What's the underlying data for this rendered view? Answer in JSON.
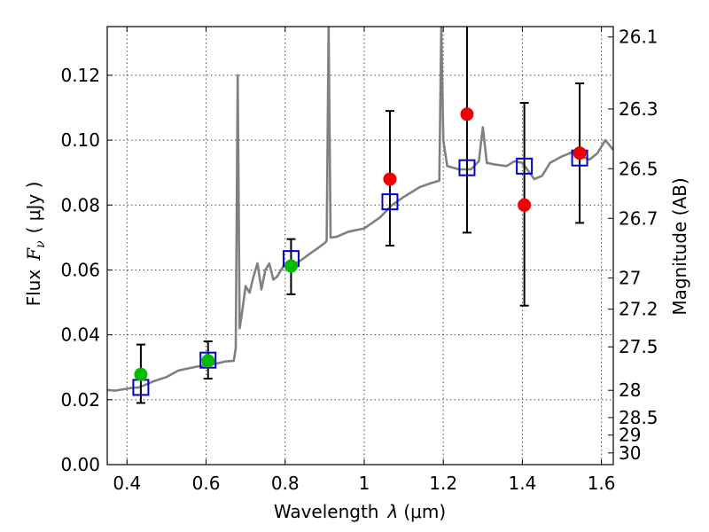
{
  "chart_data": {
    "type": "scatter",
    "xlabel": "Wavelength",
    "xlabel_symbol": "λ",
    "xlabel_unit": "(μm)",
    "ylabel": "Flux",
    "ylabel_symbol": "F",
    "ylabel_subscript": "ν",
    "ylabel_unit": "( μJy )",
    "y2label": "Magnitude (AB)",
    "xlim": [
      0.35,
      1.63
    ],
    "ylim": [
      0.0,
      0.135
    ],
    "grid": true,
    "x_ticks": [
      0.4,
      0.6,
      0.8,
      1.0,
      1.2,
      1.4,
      1.6
    ],
    "x_tick_labels": [
      "0.4",
      "0.6",
      "0.8",
      "1",
      "1.2",
      "1.4",
      "1.6"
    ],
    "y_ticks": [
      0.0,
      0.02,
      0.04,
      0.06,
      0.08,
      0.1,
      0.12
    ],
    "y_tick_labels": [
      "0.00",
      "0.02",
      "0.04",
      "0.06",
      "0.08",
      "0.10",
      "0.12"
    ],
    "y2_ticks": [
      {
        "label": "26.1",
        "flux": 0.1318
      },
      {
        "label": "26.3",
        "flux": 0.1096
      },
      {
        "label": "26.5",
        "flux": 0.0912
      },
      {
        "label": "26.7",
        "flux": 0.0759
      },
      {
        "label": "27",
        "flux": 0.0575
      },
      {
        "label": "27.2",
        "flux": 0.0479
      },
      {
        "label": "27.5",
        "flux": 0.0363
      },
      {
        "label": "28",
        "flux": 0.0229
      },
      {
        "label": "28.5",
        "flux": 0.0145
      },
      {
        "label": "29",
        "flux": 0.0091
      },
      {
        "label": "30",
        "flux": 0.0036
      }
    ],
    "series": [
      {
        "type": "line",
        "color": "#808080",
        "points": [
          [
            0.35,
            0.023
          ],
          [
            0.37,
            0.0228
          ],
          [
            0.39,
            0.0232
          ],
          [
            0.41,
            0.0236
          ],
          [
            0.43,
            0.0238
          ],
          [
            0.45,
            0.0248
          ],
          [
            0.47,
            0.0258
          ],
          [
            0.5,
            0.027
          ],
          [
            0.53,
            0.029
          ],
          [
            0.56,
            0.0298
          ],
          [
            0.59,
            0.0305
          ],
          [
            0.62,
            0.031
          ],
          [
            0.65,
            0.0318
          ],
          [
            0.67,
            0.032
          ],
          [
            0.675,
            0.036
          ],
          [
            0.68,
            0.12
          ],
          [
            0.685,
            0.042
          ],
          [
            0.69,
            0.046
          ],
          [
            0.7,
            0.055
          ],
          [
            0.71,
            0.053
          ],
          [
            0.72,
            0.058
          ],
          [
            0.73,
            0.062
          ],
          [
            0.74,
            0.054
          ],
          [
            0.75,
            0.06
          ],
          [
            0.76,
            0.062
          ],
          [
            0.77,
            0.057
          ],
          [
            0.78,
            0.058
          ],
          [
            0.8,
            0.062
          ],
          [
            0.82,
            0.0615
          ],
          [
            0.84,
            0.063
          ],
          [
            0.86,
            0.0648
          ],
          [
            0.88,
            0.0665
          ],
          [
            0.9,
            0.0683
          ],
          [
            0.905,
            0.069
          ],
          [
            0.91,
            0.135
          ],
          [
            0.915,
            0.07
          ],
          [
            0.93,
            0.0702
          ],
          [
            0.96,
            0.0718
          ],
          [
            1.0,
            0.0728
          ],
          [
            1.04,
            0.0762
          ],
          [
            1.07,
            0.08
          ],
          [
            1.1,
            0.0825
          ],
          [
            1.14,
            0.0855
          ],
          [
            1.17,
            0.0868
          ],
          [
            1.19,
            0.0875
          ],
          [
            1.195,
            0.135
          ],
          [
            1.2,
            0.1
          ],
          [
            1.21,
            0.092
          ],
          [
            1.24,
            0.091
          ],
          [
            1.27,
            0.091
          ],
          [
            1.29,
            0.0935
          ],
          [
            1.3,
            0.104
          ],
          [
            1.31,
            0.093
          ],
          [
            1.33,
            0.0925
          ],
          [
            1.36,
            0.092
          ],
          [
            1.38,
            0.0935
          ],
          [
            1.4,
            0.093
          ],
          [
            1.43,
            0.088
          ],
          [
            1.45,
            0.089
          ],
          [
            1.47,
            0.093
          ],
          [
            1.5,
            0.095
          ],
          [
            1.53,
            0.0965
          ],
          [
            1.55,
            0.095
          ],
          [
            1.57,
            0.094
          ],
          [
            1.59,
            0.096
          ],
          [
            1.61,
            0.1
          ],
          [
            1.63,
            0.097
          ]
        ]
      },
      {
        "type": "scatter",
        "marker": "square",
        "color": "#0000cc",
        "points": [
          [
            0.435,
            0.0238
          ],
          [
            0.605,
            0.0322
          ],
          [
            0.815,
            0.0635
          ],
          [
            1.065,
            0.081
          ],
          [
            1.26,
            0.0915
          ],
          [
            1.405,
            0.092
          ],
          [
            1.545,
            0.0945
          ]
        ]
      },
      {
        "type": "scatter",
        "marker": "circle",
        "color": "#00bb00",
        "points": [
          [
            0.435,
            0.0278
          ],
          [
            0.605,
            0.032
          ],
          [
            0.815,
            0.0612
          ]
        ]
      },
      {
        "type": "scatter",
        "marker": "circle",
        "color": "#ee0000",
        "points": [
          [
            1.065,
            0.088
          ],
          [
            1.26,
            0.108
          ],
          [
            1.405,
            0.08
          ],
          [
            1.545,
            0.096
          ]
        ]
      },
      {
        "type": "errorbar",
        "color": "#000000",
        "points": [
          {
            "x": 0.435,
            "y": 0.0278,
            "low": 0.019,
            "high": 0.037
          },
          {
            "x": 0.605,
            "y": 0.032,
            "low": 0.0265,
            "high": 0.038
          },
          {
            "x": 0.815,
            "y": 0.0612,
            "low": 0.0525,
            "high": 0.0695
          },
          {
            "x": 1.065,
            "y": 0.088,
            "low": 0.0675,
            "high": 0.109
          },
          {
            "x": 1.26,
            "y": 0.108,
            "low": 0.0715,
            "high": 0.135
          },
          {
            "x": 1.405,
            "y": 0.08,
            "low": 0.049,
            "high": 0.1115
          },
          {
            "x": 1.545,
            "y": 0.096,
            "low": 0.0745,
            "high": 0.1175
          }
        ]
      }
    ]
  }
}
